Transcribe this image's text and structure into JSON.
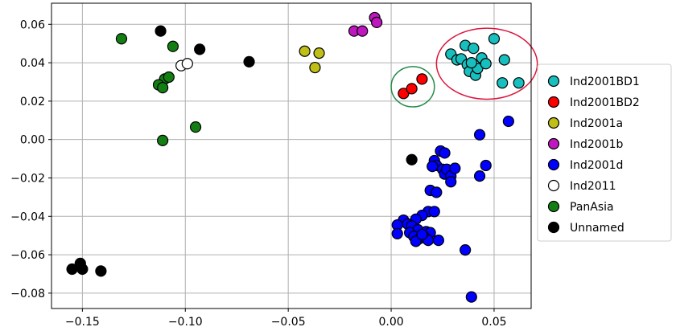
{
  "chart_data": {
    "type": "scatter",
    "title": "",
    "xlabel": "",
    "ylabel": "",
    "xlim": [
      -0.165,
      0.068
    ],
    "ylim": [
      -0.088,
      0.071
    ],
    "grid": true,
    "xticks": [
      -0.15,
      -0.1,
      -0.05,
      0.0,
      0.05
    ],
    "xtick_labels": [
      "−0.15",
      "−0.10",
      "−0.05",
      "0.00",
      "0.05"
    ],
    "yticks": [
      -0.08,
      -0.06,
      -0.04,
      -0.02,
      0.0,
      0.02,
      0.04,
      0.06
    ],
    "ytick_labels": [
      "−0.08",
      "−0.06",
      "−0.04",
      "−0.02",
      "0.00",
      "0.02",
      "0.04",
      "0.06"
    ],
    "legend_position": "right",
    "series": [
      {
        "name": "Ind2001BD1",
        "color": "#17bfbf",
        "points": [
          [
            0.029,
            0.0445
          ],
          [
            0.032,
            0.0415
          ],
          [
            0.034,
            0.042
          ],
          [
            0.036,
            0.049
          ],
          [
            0.037,
            0.039
          ],
          [
            0.038,
            0.0355
          ],
          [
            0.04,
            0.0475
          ],
          [
            0.041,
            0.0335
          ],
          [
            0.042,
            0.037
          ],
          [
            0.044,
            0.0425
          ],
          [
            0.046,
            0.0395
          ],
          [
            0.05,
            0.0525
          ],
          [
            0.054,
            0.0295
          ],
          [
            0.055,
            0.0415
          ],
          [
            0.062,
            0.0295
          ],
          [
            0.039,
            0.04
          ]
        ]
      },
      {
        "name": "Ind2001BD2",
        "color": "#ff0000",
        "points": [
          [
            0.006,
            0.024
          ],
          [
            0.01,
            0.0265
          ],
          [
            0.015,
            0.0315
          ]
        ]
      },
      {
        "name": "Ind2001a",
        "color": "#bfbf17",
        "points": [
          [
            -0.042,
            0.046
          ],
          [
            -0.037,
            0.0375
          ],
          [
            -0.035,
            0.045
          ]
        ]
      },
      {
        "name": "Ind2001b",
        "color": "#bf17bf",
        "points": [
          [
            -0.018,
            0.0565
          ],
          [
            -0.014,
            0.0565
          ],
          [
            -0.008,
            0.0635
          ],
          [
            -0.007,
            0.061
          ]
        ]
      },
      {
        "name": "Ind2001d",
        "color": "#0000ff",
        "points": [
          [
            0.057,
            0.0095
          ],
          [
            0.043,
            0.0025
          ],
          [
            0.046,
            -0.0135
          ],
          [
            0.043,
            -0.019
          ],
          [
            0.024,
            -0.006
          ],
          [
            0.026,
            -0.007
          ],
          [
            0.021,
            -0.011
          ],
          [
            0.022,
            -0.0135
          ],
          [
            0.02,
            -0.014
          ],
          [
            0.025,
            -0.0155
          ],
          [
            0.026,
            -0.018
          ],
          [
            0.027,
            -0.0155
          ],
          [
            0.029,
            -0.019
          ],
          [
            0.029,
            -0.022
          ],
          [
            0.031,
            -0.015
          ],
          [
            0.019,
            -0.0265
          ],
          [
            0.022,
            -0.0275
          ],
          [
            0.018,
            -0.0375
          ],
          [
            0.021,
            -0.0375
          ],
          [
            0.015,
            -0.0395
          ],
          [
            0.012,
            -0.0415
          ],
          [
            0.006,
            -0.042
          ],
          [
            0.008,
            -0.044
          ],
          [
            0.003,
            -0.0445
          ],
          [
            0.01,
            -0.045
          ],
          [
            0.013,
            -0.047
          ],
          [
            0.017,
            -0.048
          ],
          [
            0.019,
            -0.0485
          ],
          [
            0.009,
            -0.0485
          ],
          [
            0.003,
            -0.049
          ],
          [
            0.011,
            -0.0505
          ],
          [
            0.014,
            -0.0515
          ],
          [
            0.016,
            -0.0505
          ],
          [
            0.018,
            -0.0525
          ],
          [
            0.023,
            -0.0525
          ],
          [
            0.012,
            -0.053
          ],
          [
            0.015,
            -0.0495
          ],
          [
            0.036,
            -0.0575
          ],
          [
            0.039,
            -0.082
          ]
        ]
      },
      {
        "name": "Ind2011",
        "color": "#ffffff",
        "points": [
          [
            -0.102,
            0.0385
          ],
          [
            -0.099,
            0.0395
          ]
        ]
      },
      {
        "name": "PanAsia",
        "color": "#137f13",
        "points": [
          [
            -0.131,
            0.0525
          ],
          [
            -0.106,
            0.0485
          ],
          [
            -0.11,
            0.0315
          ],
          [
            -0.113,
            0.0285
          ],
          [
            -0.111,
            0.027
          ],
          [
            -0.108,
            0.0325
          ],
          [
            -0.095,
            0.0065
          ],
          [
            -0.111,
            -0.0005
          ]
        ]
      },
      {
        "name": "Unnamed",
        "color": "#000000",
        "points": [
          [
            -0.112,
            0.0565
          ],
          [
            -0.093,
            0.047
          ],
          [
            -0.069,
            0.0405
          ],
          [
            0.01,
            -0.0105
          ],
          [
            -0.155,
            -0.0675
          ],
          [
            -0.151,
            -0.0645
          ],
          [
            -0.15,
            -0.0675
          ],
          [
            -0.141,
            -0.0685
          ]
        ]
      }
    ],
    "annotations": [
      {
        "type": "ellipse",
        "color": "#dc143c",
        "cx": 0.0465,
        "cy": 0.0395,
        "rx": 0.0245,
        "ry": 0.0185
      },
      {
        "type": "ellipse",
        "color": "#228b4a",
        "cx": 0.0105,
        "cy": 0.0275,
        "rx": 0.0105,
        "ry": 0.0105
      }
    ]
  }
}
